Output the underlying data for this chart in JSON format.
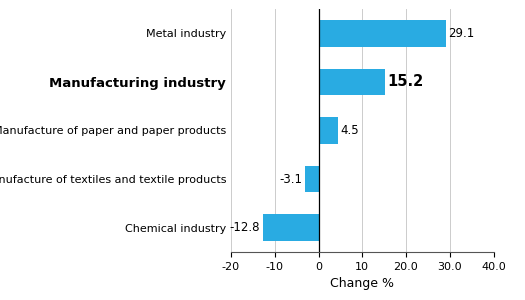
{
  "categories": [
    "Chemical industry",
    "Manufacture of textiles and textile products",
    "Manufacture of paper and paper products",
    "Manufacturing industry",
    "Metal industry"
  ],
  "values": [
    -12.8,
    -3.1,
    4.5,
    15.2,
    29.1
  ],
  "bold_index": 3,
  "bar_color": "#29abe2",
  "xlabel": "Change %",
  "xlim": [
    -20,
    40
  ],
  "xticks": [
    -20,
    -10,
    0,
    10,
    20.0,
    30.0,
    40.0
  ],
  "xtick_labels": [
    "-20",
    "-10",
    "0",
    "10",
    "20.0",
    "30.0",
    "40.0"
  ],
  "value_labels": [
    "-12.8",
    "-3.1",
    "4.5",
    "15.2",
    "29.1"
  ],
  "value_offsets": [
    0.5,
    0.5,
    0.5,
    0.5,
    0.5
  ],
  "background_color": "#ffffff",
  "grid_color": "#cccccc",
  "bar_height": 0.55,
  "label_fontsize": 8.0,
  "bold_fontsize": 9.5,
  "value_fontsize": 8.5,
  "bold_value_fontsize": 10.5
}
